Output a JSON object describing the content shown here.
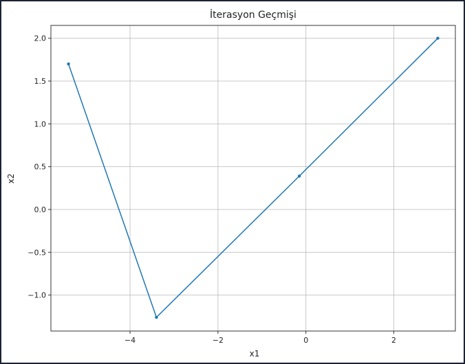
{
  "chart_data": {
    "type": "line",
    "title": "İterasyon Geçmişi",
    "xlabel": "x1",
    "ylabel": "x2",
    "xlim": [
      -5.8,
      3.4
    ],
    "ylim": [
      -1.42,
      2.15
    ],
    "xticks": [
      -4,
      -2,
      0,
      2
    ],
    "xtick_labels": [
      "−4",
      "−2",
      "0",
      "2"
    ],
    "yticks": [
      -1.0,
      -0.5,
      0.0,
      0.5,
      1.0,
      1.5,
      2.0
    ],
    "ytick_labels": [
      "−1.0",
      "−0.5",
      "0.0",
      "0.5",
      "1.0",
      "1.5",
      "2.0"
    ],
    "grid": true,
    "series": [
      {
        "color": "#1f77b4",
        "marker": "point",
        "x": [
          3.0,
          -0.15,
          -3.4,
          -5.4
        ],
        "y": [
          2.0,
          0.39,
          -1.26,
          1.7
        ]
      }
    ]
  }
}
